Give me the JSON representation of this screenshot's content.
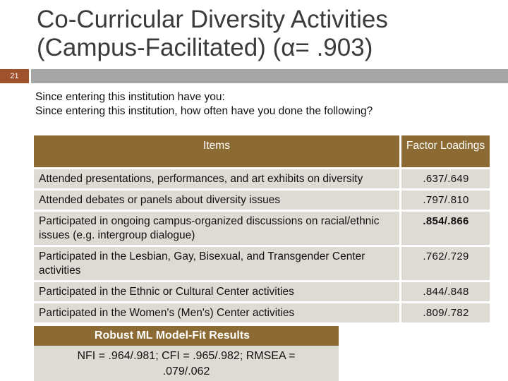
{
  "slide": {
    "title_line1": "Co-Curricular Diversity Activities",
    "title_line2": "(Campus-Facilitated) (α= .903)",
    "slide_number": "21"
  },
  "intro": {
    "line1": "Since entering this institution have you:",
    "line2": "Since entering this institution, how often have you done the following?"
  },
  "table": {
    "headers": {
      "items": "Items",
      "factor_loadings": "Factor Loadings"
    },
    "rows": [
      {
        "item": "Attended presentations, performances, and art exhibits on diversity",
        "loading": ".637/.649"
      },
      {
        "item": "Attended debates or panels about diversity issues",
        "loading": ".797/.810"
      },
      {
        "item": "Participated in ongoing campus-organized discussions on racial/ethnic issues (e.g. intergroup dialogue)",
        "loading": ".854/.866"
      },
      {
        "item": "Participated in the Lesbian, Gay, Bisexual, and Transgender Center activities",
        "loading": ".762/.729"
      },
      {
        "item": "Participated in the Ethnic or Cultural Center activities",
        "loading": ".844/.848"
      },
      {
        "item": "Participated in the Women's (Men's) Center activities",
        "loading": ".809/.782"
      }
    ]
  },
  "fit_box": {
    "title": "Robust ML Model-Fit Results",
    "line1": "NFI = .964/.981; CFI = .965/.982; RMSEA =",
    "line2": ".079/.062"
  },
  "colors": {
    "header_brown": "#8b6a33",
    "row_fill": "#dedbd5",
    "band_gray": "#a6a6a6",
    "slide_number_fill": "#a0522d"
  }
}
